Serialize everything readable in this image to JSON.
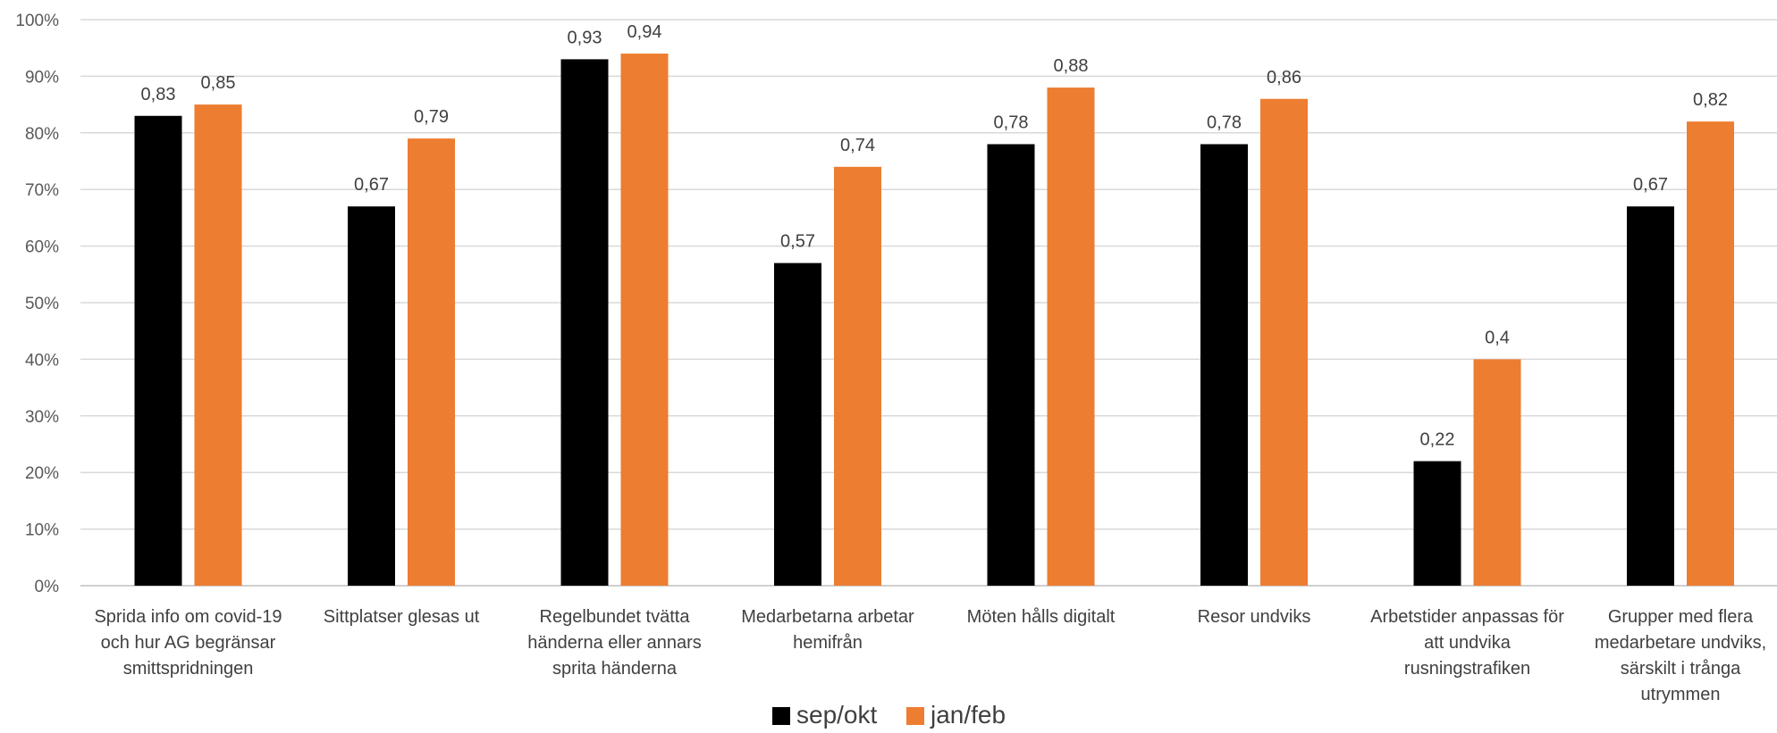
{
  "chart_data": {
    "type": "bar",
    "title": "",
    "xlabel": "",
    "ylabel": "",
    "ylim": [
      0,
      1
    ],
    "y_ticks": [
      "0%",
      "10%",
      "20%",
      "30%",
      "40%",
      "50%",
      "60%",
      "70%",
      "80%",
      "90%",
      "100%"
    ],
    "grid": true,
    "legend_position": "bottom",
    "categories": [
      [
        "Sprida info om covid-19",
        "och hur AG begränsar",
        "smittspridningen"
      ],
      [
        "Sittplatser glesas ut"
      ],
      [
        "Regelbundet tvätta",
        "händerna eller annars",
        "sprita händerna"
      ],
      [
        "Medarbetarna arbetar",
        "hemifrån"
      ],
      [
        "Möten hålls digitalt"
      ],
      [
        "Resor undviks"
      ],
      [
        "Arbetstider anpassas för",
        "att undvika",
        "rusningstrafiken"
      ],
      [
        "Grupper med flera",
        "medarbetare undviks,",
        "särskilt i trånga",
        "utrymmen"
      ]
    ],
    "series": [
      {
        "name": "sep/okt",
        "color": "#000000",
        "values": [
          0.83,
          0.67,
          0.93,
          0.57,
          0.78,
          0.78,
          0.22,
          0.67
        ],
        "labels": [
          "0,83",
          "0,67",
          "0,93",
          "0,57",
          "0,78",
          "0,78",
          "0,22",
          "0,67"
        ]
      },
      {
        "name": "jan/feb",
        "color": "#ed7d31",
        "values": [
          0.85,
          0.79,
          0.94,
          0.74,
          0.88,
          0.86,
          0.4,
          0.82
        ],
        "labels": [
          "0,85",
          "0,79",
          "0,94",
          "0,74",
          "0,88",
          "0,86",
          "0,4",
          "0,82"
        ]
      }
    ]
  }
}
